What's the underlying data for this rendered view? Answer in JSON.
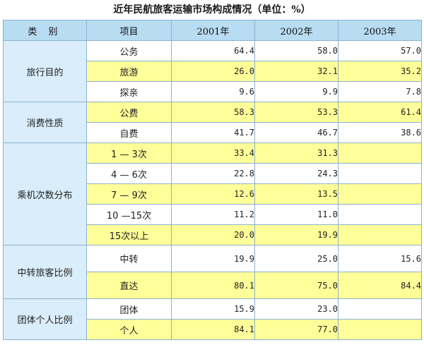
{
  "title": "近年民航旅客运输市场构成情况（单位：%）",
  "headers": {
    "category": "类 别",
    "item": "项目",
    "y2001": "2001年",
    "y2002": "2002年",
    "y2003": "2003年"
  },
  "groups": [
    {
      "name": "旅行目的",
      "rows": [
        {
          "item": "公务",
          "v2001": "64.4",
          "v2002": "58.0",
          "v2003": "57.0"
        },
        {
          "item": "旅游",
          "v2001": "26.0",
          "v2002": "32.1",
          "v2003": "35.2"
        },
        {
          "item": "探亲",
          "v2001": "9.6",
          "v2002": "9.9",
          "v2003": "7.8"
        }
      ]
    },
    {
      "name": "消费性质",
      "rows": [
        {
          "item": "公费",
          "v2001": "58.3",
          "v2002": "53.3",
          "v2003": "61.4"
        },
        {
          "item": "自费",
          "v2001": "41.7",
          "v2002": "46.7",
          "v2003": "38.6"
        }
      ]
    },
    {
      "name": "乘机次数分布",
      "rows": [
        {
          "item": "1 — 3次",
          "v2001": "33.4",
          "v2002": "31.3",
          "v2003": ""
        },
        {
          "item": "4 — 6次",
          "v2001": "22.8",
          "v2002": "24.3",
          "v2003": ""
        },
        {
          "item": "7 — 9次",
          "v2001": "12.6",
          "v2002": "13.5",
          "v2003": ""
        },
        {
          "item": "10 —15次",
          "v2001": "11.2",
          "v2002": "11.0",
          "v2003": ""
        },
        {
          "item": "15次以上",
          "v2001": "20.0",
          "v2002": "19.9",
          "v2003": ""
        }
      ]
    },
    {
      "name": "中转旅客比例",
      "rows": [
        {
          "item": "中转",
          "v2001": "19.9",
          "v2002": "25.0",
          "v2003": "15.6"
        },
        {
          "item": "直达",
          "v2001": "80.1",
          "v2002": "75.0",
          "v2003": "84.4"
        }
      ]
    },
    {
      "name": "团体个人比例",
      "rows": [
        {
          "item": "团体",
          "v2001": "15.9",
          "v2002": "23.0",
          "v2003": ""
        },
        {
          "item": "个人",
          "v2001": "84.1",
          "v2002": "77.0",
          "v2003": ""
        }
      ]
    }
  ]
}
